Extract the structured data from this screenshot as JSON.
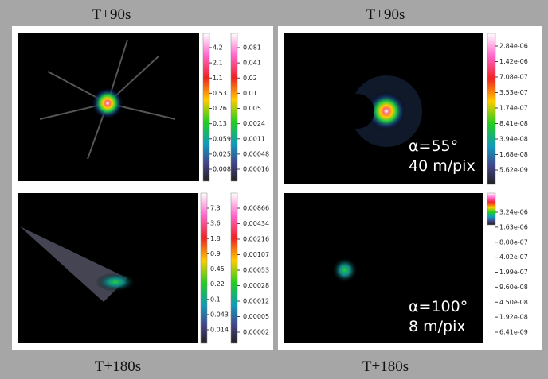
{
  "labels": {
    "top_left": "T+90s",
    "top_right": "T+90s",
    "bottom_left": "T+180s",
    "bottom_right": "T+180s"
  },
  "panels": [
    {
      "colorbars": [
        [
          "4.2",
          "2.1",
          "1.1",
          "0.53",
          "0.26",
          "0.13",
          "0.059",
          "0.025",
          "0.0084"
        ],
        [
          "0.081",
          "0.041",
          "0.02",
          "0.01",
          "0.005",
          "0.0024",
          "0.0011",
          "0.00048",
          "0.00016"
        ]
      ]
    },
    {
      "colorbars": [
        [
          "7.3",
          "3.6",
          "1.8",
          "0.9",
          "0.45",
          "0.22",
          "0.1",
          "0.043",
          "0.014"
        ],
        [
          "0.00866",
          "0.00434",
          "0.00216",
          "0.00107",
          "0.00053",
          "0.00028",
          "0.00012",
          "0.00005",
          "0.00002"
        ]
      ]
    },
    {
      "colorbars": [
        [
          "2.84e-06",
          "1.42e-06",
          "7.08e-07",
          "3.53e-07",
          "1.74e-07",
          "8.41e-08",
          "3.94e-08",
          "1.68e-08",
          "5.62e-09"
        ]
      ],
      "annotation": [
        "α=55°",
        "40 m/pix"
      ]
    },
    {
      "colorbars": [
        [
          "3.24e-06",
          "1.63e-06",
          "8.08e-07",
          "4.02e-07",
          "1.99e-07",
          "9.60e-08",
          "4.50e-08",
          "1.92e-08",
          "6.41e-09"
        ]
      ],
      "annotation": [
        "α=100°",
        "8 m/pix"
      ]
    }
  ]
}
